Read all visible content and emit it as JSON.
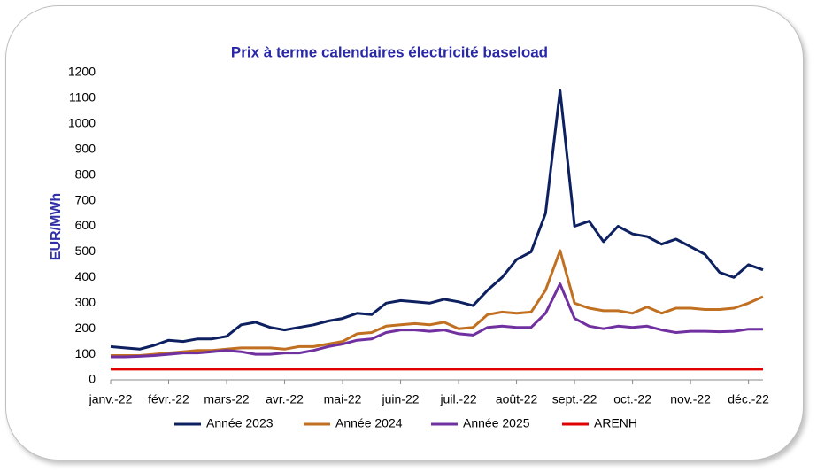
{
  "chart_data": {
    "type": "line",
    "title": "Prix à terme calendaires électricité baseload",
    "y_label": "EUR/MWh",
    "categories": [
      "janv.-22",
      null,
      null,
      null,
      "févr.-22",
      null,
      null,
      null,
      "mars-22",
      null,
      null,
      null,
      "avr.-22",
      null,
      null,
      null,
      "mai-22",
      null,
      null,
      null,
      "juin-22",
      null,
      null,
      null,
      "juil.-22",
      null,
      null,
      null,
      "août-22",
      null,
      null,
      null,
      "sept.-22",
      null,
      null,
      null,
      "oct.-22",
      null,
      null,
      null,
      "nov.-22",
      null,
      null,
      null,
      "déc.-22",
      null
    ],
    "series": [
      {
        "name": "Année 2023",
        "color": "#0d2060",
        "values": [
          130,
          125,
          120,
          135,
          155,
          150,
          160,
          160,
          170,
          215,
          225,
          205,
          195,
          205,
          215,
          230,
          240,
          260,
          255,
          300,
          310,
          305,
          300,
          315,
          305,
          290,
          350,
          400,
          470,
          500,
          650,
          1130,
          600,
          620,
          540,
          600,
          570,
          560,
          530,
          550,
          520,
          490,
          420,
          400,
          450,
          430
        ]
      },
      {
        "name": "Année 2024",
        "color": "#c07020",
        "values": [
          95,
          95,
          95,
          100,
          105,
          110,
          115,
          115,
          120,
          125,
          125,
          125,
          120,
          130,
          130,
          140,
          150,
          180,
          185,
          210,
          215,
          220,
          215,
          225,
          200,
          205,
          255,
          265,
          260,
          265,
          350,
          505,
          300,
          280,
          270,
          270,
          260,
          285,
          260,
          280,
          280,
          275,
          275,
          280,
          300,
          325
        ]
      },
      {
        "name": "Année 2025",
        "color": "#7030a0",
        "values": [
          90,
          90,
          92,
          95,
          100,
          105,
          105,
          110,
          115,
          110,
          100,
          100,
          105,
          105,
          115,
          130,
          140,
          155,
          160,
          185,
          195,
          195,
          190,
          195,
          180,
          175,
          205,
          210,
          205,
          205,
          260,
          375,
          240,
          210,
          200,
          210,
          205,
          210,
          195,
          185,
          190,
          190,
          188,
          190,
          198,
          198
        ]
      },
      {
        "name": "ARENH",
        "color": "#e00000",
        "values": [
          42,
          42,
          42,
          42,
          42,
          42,
          42,
          42,
          42,
          42,
          42,
          42,
          42,
          42,
          42,
          42,
          42,
          42,
          42,
          42,
          42,
          42,
          42,
          42,
          42,
          42,
          42,
          42,
          42,
          42,
          42,
          42,
          42,
          42,
          42,
          42,
          42,
          42,
          42,
          42,
          42,
          42,
          42,
          42,
          42,
          42
        ]
      }
    ],
    "ylim": [
      0,
      1200
    ],
    "yticks": [
      0,
      100,
      200,
      300,
      400,
      500,
      600,
      700,
      800,
      900,
      1000,
      1100,
      1200
    ],
    "grid": false,
    "legend": "bottom"
  }
}
